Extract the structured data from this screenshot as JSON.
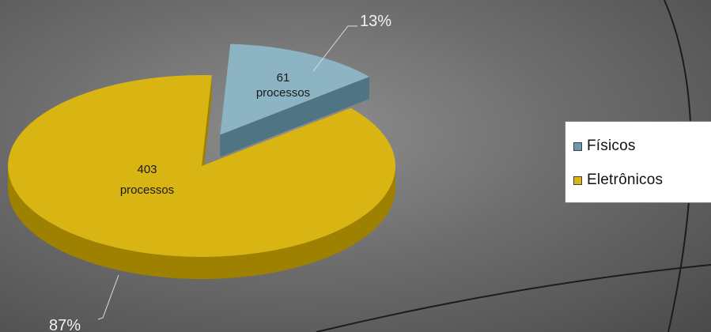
{
  "chart_data": {
    "type": "pie",
    "style": "3d-exploded",
    "categories": [
      "Físicos",
      "Eletrônicos"
    ],
    "values": [
      61,
      403
    ],
    "percent_labels": [
      "13%",
      "87%"
    ],
    "data_labels": [
      {
        "count": "61",
        "unit": "processos"
      },
      {
        "count": "403",
        "unit": "processos"
      }
    ],
    "colors": [
      "#8db4c3",
      "#d9b514"
    ],
    "side_colors": [
      "#4f7484",
      "#9e8100"
    ],
    "legend": {
      "position": "right",
      "items": [
        {
          "label": "Físicos",
          "color": "#6d99ad"
        },
        {
          "label": "Eletrônicos",
          "color": "#d9b514"
        }
      ]
    }
  }
}
